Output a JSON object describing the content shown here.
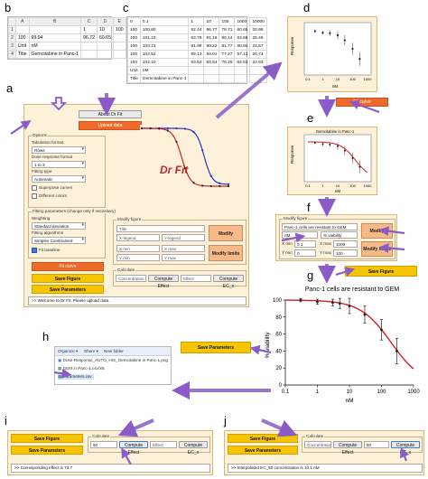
{
  "panel_labels": {
    "a": "a",
    "b": "b",
    "c": "c",
    "d": "d",
    "e": "e",
    "f": "f",
    "g": "g",
    "h": "h",
    "i": "i",
    "j": "j"
  },
  "sheet_b": {
    "columns": [
      "",
      "A",
      "B",
      "C",
      "D",
      "E"
    ],
    "rows": [
      [
        "1",
        "",
        "",
        "1",
        "10",
        "100"
      ],
      [
        "2",
        "100",
        "99.94",
        "96.72",
        "60.65",
        ""
      ],
      [
        "3",
        "Unit",
        "nM",
        "",
        "",
        ""
      ],
      [
        "4",
        "Title",
        "Gemcitabine in Panc-1",
        "",
        "",
        ""
      ]
    ]
  },
  "sheet_c": {
    "rows": [
      [
        "0",
        "0.1",
        "1",
        "10",
        "100",
        "1000",
        "10000"
      ],
      [
        "100",
        "100.80",
        "92.44",
        "96.77",
        "78.71",
        "60.65",
        "20.98"
      ],
      [
        "100",
        "101.23",
        "93.79",
        "91.16",
        "80.14",
        "63.66",
        "25.46"
      ],
      [
        "100",
        "103.21",
        "91.99",
        "90.22",
        "81.77",
        "60.94",
        "21.57"
      ],
      [
        "100",
        "102.52",
        "95.13",
        "94.01",
        "77.27",
        "57.13",
        "20.74"
      ],
      [
        "100",
        "102.10",
        "93.64",
        "93.54",
        "76.26",
        "62.53",
        "22.93"
      ],
      [
        "Unit",
        "nM",
        "",
        "",
        "",
        "",
        ""
      ],
      [
        "Title",
        "Gemcitabine in Panc-1",
        "",
        "",
        "",
        "",
        ""
      ]
    ]
  },
  "app_a": {
    "about_label": "About Dr Fit",
    "upload_label": "Upload data",
    "options_legend": "Options",
    "tabulation_label": "Tabulation format",
    "tabulation_value": "Rows",
    "dose_format_label": "Dose response format",
    "dose_format_value": "1 to 3",
    "fitting_type_label": "Fitting type",
    "fitting_type_value": "Automatic",
    "superpose_label": "Superpose curves",
    "colors_label": "Different colors",
    "fitting_params_legend": "Fitting parameters (change only if necessary)",
    "weighting_label": "Weighting",
    "weighting_value": "Standard deviation",
    "algorithm_label": "Fitting algorithms",
    "algorithm_value": "Simplex Constrained",
    "fit_baseline_label": "Fit baseline",
    "fit_curve_label": "Fit curve",
    "save_figure_label": "Save Figure",
    "save_params_label": "Save Parameters",
    "logo_text": "Dr Fit",
    "modify_legend": "Modify figure",
    "title_field": "Title",
    "xlegend_field": "X-legend",
    "ylegend_field": "Y-legend",
    "xmin_field": "X min",
    "xmax_field": "X max",
    "ymin_field": "Y min",
    "ymax_field": "Y max",
    "modify_legends_label": "Modify legends",
    "modify_limits_label": "Modify limits",
    "calculate_legend": "Calculate",
    "concentration_field": "Concentration",
    "compute_effect_label": "Compute Effect",
    "effect_field": "Effect",
    "compute_ec_label": "Compute EC_x",
    "status_text": ">> Welcome to Dr Fit. Please upload data."
  },
  "panel_d": {
    "ylabel": "Response",
    "xlabel": "nM",
    "ticks": [
      "0.1",
      "1",
      "10",
      "100",
      "1000"
    ]
  },
  "panel_e": {
    "title": "Gemcitabine in Panc-1",
    "ylabel": "Response",
    "xlabel": "nM",
    "ticks": [
      "0.1",
      "1",
      "10",
      "100",
      "1000"
    ],
    "fit_curve_label": "Fit curve"
  },
  "panel_f": {
    "legend": "Modify figure",
    "title_value": "Panc-1 cells are resistant to GEM",
    "xlegend_value": "nM",
    "ylegend_value": "% viability",
    "xmin_label": "X min",
    "xmin_value": "0.1",
    "xmax_label": "X max",
    "xmax_value": "1000",
    "ymin_label": "Y min",
    "ymin_value": "0",
    "ymax_label": "Y max",
    "ymax_value": "100",
    "modify_legends_label": "Modify legends",
    "modify_limits_label": "Modify limits"
  },
  "panel_g": {
    "save_figure_label": "Save Figure"
  },
  "panel_h": {
    "save_params_label": "Save Parameters",
    "toolbar": [
      "Organize ▾",
      "Share ▾",
      "New folder"
    ],
    "files": [
      "Dose-Response_AUTO_HIS_Gemcitabine in Panc-1.png",
      "GEM in Panc-1.csv/xls",
      "Parameters.csv"
    ]
  },
  "panel_i": {
    "save_figure_label": "Save Figure",
    "save_params_label": "Save Parameters",
    "calculate_legend": "Calculate",
    "concentration_value": "50",
    "compute_effect_label": "Compute Effect",
    "effect_value": "Effect",
    "compute_ec_label": "Compute EC_x",
    "status_text": ">> Corresponding effect is 73.7"
  },
  "panel_j": {
    "save_figure_label": "Save Figure",
    "save_params_label": "Save Parameters",
    "calculate_legend": "Calculate",
    "concentration_value": "Concentration",
    "compute_effect_label": "Compute Effect",
    "effect_value": "50",
    "compute_ec_label": "Compute EC_x",
    "status_text": ">> Interpolated EC_50 concentration is 10.1 nM"
  },
  "chart_data": [
    {
      "type": "scatter",
      "title": "Panc-1 cells are resistant to GEM",
      "xlabel": "nM",
      "ylabel": "% viability",
      "xscale": "log",
      "xlim": [
        0.1,
        1000
      ],
      "ylim": [
        0,
        100
      ],
      "xticks": [
        "0.1",
        "1",
        "10",
        "100",
        "1000"
      ],
      "yticks": [
        "0",
        "20",
        "40",
        "60",
        "80",
        "100"
      ],
      "points": [
        {
          "x": 0.3,
          "y": 100,
          "err": 2
        },
        {
          "x": 1,
          "y": 98,
          "err": 3
        },
        {
          "x": 3,
          "y": 97,
          "err": 4
        },
        {
          "x": 5,
          "y": 96,
          "err": 6
        },
        {
          "x": 10,
          "y": 93,
          "err": 9
        },
        {
          "x": 30,
          "y": 83,
          "err": 10
        },
        {
          "x": 100,
          "y": 65,
          "err": 12
        },
        {
          "x": 300,
          "y": 40,
          "err": 15
        }
      ],
      "fit_color": "#d21f1f",
      "point_color": "#222222",
      "grid": false
    },
    {
      "type": "line",
      "xlabel": "nM",
      "ylabel": "Response",
      "xscale": "log",
      "xticks": [
        "0.1",
        "1",
        "10",
        "100",
        "1000"
      ],
      "points": [
        {
          "x": 0.3,
          "y": 100,
          "err": 3
        },
        {
          "x": 1,
          "y": 97,
          "err": 4
        },
        {
          "x": 3,
          "y": 96,
          "err": 5
        },
        {
          "x": 10,
          "y": 92,
          "err": 8
        },
        {
          "x": 30,
          "y": 82,
          "err": 10
        },
        {
          "x": 100,
          "y": 65,
          "err": 12
        },
        {
          "x": 300,
          "y": 45,
          "err": 14
        }
      ]
    }
  ],
  "colors": {
    "orange": "#ee6a2b",
    "yellow": "#f7c400",
    "peach": "#f6b987",
    "app_bg": "#fdf2d9",
    "arrow": "#8a5cc7",
    "red": "#d21f1f",
    "blue": "#2233cc"
  }
}
